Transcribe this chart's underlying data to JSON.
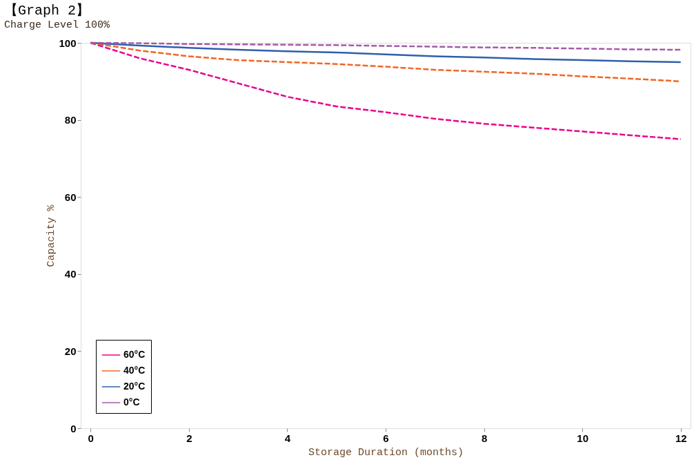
{
  "chart_data": {
    "type": "line",
    "title": "【Graph 2】",
    "subtitle": "Charge Level 100%",
    "xlabel": "Storage Duration (months)",
    "ylabel": "Capacity %",
    "x": [
      0,
      1,
      2,
      3,
      4,
      5,
      6,
      7,
      8,
      9,
      10,
      11,
      12
    ],
    "series": [
      {
        "name": "60°C",
        "color": "#ec008c",
        "line_style": "dashed",
        "values": [
          100,
          96,
          93,
          89.5,
          86,
          83.5,
          82,
          80.3,
          79,
          78,
          77,
          76,
          75
        ]
      },
      {
        "name": "40°C",
        "color": "#f26522",
        "line_style": "dashed",
        "values": [
          100,
          98,
          96.5,
          95.5,
          95,
          94.5,
          93.8,
          93,
          92.5,
          92,
          91.3,
          90.7,
          90
        ]
      },
      {
        "name": "20°C",
        "color": "#2e5fac",
        "line_style": "solid",
        "values": [
          100,
          99.3,
          98.7,
          98.2,
          97.8,
          97.5,
          97,
          96.5,
          96.2,
          95.8,
          95.5,
          95.2,
          95
        ]
      },
      {
        "name": "0°C",
        "color": "#a35aa8",
        "line_style": "dashed",
        "values": [
          100,
          99.9,
          99.7,
          99.6,
          99.5,
          99.4,
          99.2,
          99,
          98.8,
          98.7,
          98.5,
          98.3,
          98.2
        ]
      }
    ],
    "xlim": [
      -0.2,
      12.2
    ],
    "xticks": [
      0,
      2,
      4,
      6,
      8,
      10,
      12
    ],
    "ylim": [
      0,
      100
    ],
    "yticks": [
      0,
      20,
      40,
      60,
      80,
      100
    ],
    "grid": false,
    "legend": "bottom left",
    "marker": "none"
  }
}
